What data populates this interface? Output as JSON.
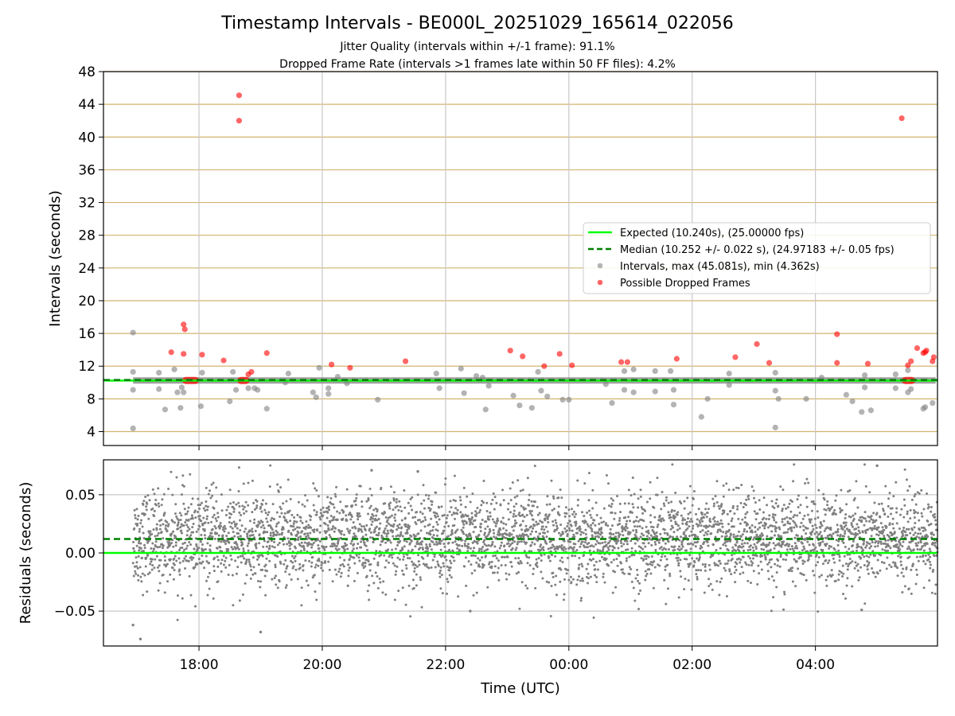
{
  "colors": {
    "expected": "#00ff00",
    "median": "#008000",
    "intervals": "#808080",
    "dropped": "#ff0000",
    "hgrid_top": "#d2b46e",
    "grid": "#c8c8c8"
  },
  "chart_data": [
    {
      "type": "scatter",
      "title": "Timestamp Intervals - BE000L_20251029_165614_022056",
      "subtitle_1": "Jitter Quality (intervals within +/-1 frame): 91.1%",
      "subtitle_2": "Dropped Frame Rate (intervals >1 frames late within 50 FF files): 4.2%",
      "xlabel": "",
      "ylabel": "Intervals (seconds)",
      "ylim": [
        2.3,
        48
      ],
      "yticks": [
        4,
        8,
        12,
        16,
        20,
        24,
        28,
        32,
        36,
        40,
        44,
        48
      ],
      "x_unit": "hours since 00:00 UTC on first day",
      "xlim": [
        16.45,
        29.98
      ],
      "xticks": [
        18,
        20,
        22,
        24,
        26,
        28
      ],
      "grid": true,
      "legend_position": "center-right",
      "legend": {
        "expected": "Expected (10.240s), (25.00000 fps)",
        "median": "Median (10.252 +/- 0.022 s), (24.97183 +/- 0.05 fps)",
        "intervals": "Intervals, max (45.081s), min (4.362s)",
        "dropped": "Possible Dropped Frames"
      },
      "series": [
        {
          "name": "Expected (10.240s), (25.00000 fps)",
          "kind": "hline",
          "y": 10.24
        },
        {
          "name": "Median (10.252 +/- 0.022 s), (24.97183 +/- 0.05 fps)",
          "kind": "hline",
          "y": 10.252
        },
        {
          "name": "Intervals, max (45.081s), min (4.362s)",
          "kind": "scatter",
          "band": {
            "x_start": 16.93,
            "x_end": 29.95,
            "y": 10.25
          },
          "points": [
            [
              16.93,
              16.1
            ],
            [
              16.93,
              11.3
            ],
            [
              16.93,
              9.1
            ],
            [
              16.93,
              4.4
            ],
            [
              17.35,
              11.2
            ],
            [
              17.35,
              9.2
            ],
            [
              17.45,
              6.7
            ],
            [
              17.6,
              11.6
            ],
            [
              17.65,
              8.8
            ],
            [
              17.7,
              6.9
            ],
            [
              17.72,
              9.4
            ],
            [
              17.75,
              8.8
            ],
            [
              18.05,
              11.2
            ],
            [
              18.03,
              7.1
            ],
            [
              18.5,
              7.7
            ],
            [
              18.55,
              11.3
            ],
            [
              18.6,
              9.1
            ],
            [
              18.8,
              9.3
            ],
            [
              18.9,
              9.3
            ],
            [
              18.95,
              9.1
            ],
            [
              19.1,
              6.8
            ],
            [
              19.45,
              11.1
            ],
            [
              19.4,
              10.0
            ],
            [
              19.85,
              8.8
            ],
            [
              19.9,
              8.2
            ],
            [
              19.95,
              11.8
            ],
            [
              20.1,
              9.3
            ],
            [
              20.1,
              8.6
            ],
            [
              20.25,
              10.7
            ],
            [
              20.4,
              9.9
            ],
            [
              20.9,
              7.9
            ],
            [
              21.85,
              11.1
            ],
            [
              21.9,
              9.3
            ],
            [
              22.25,
              11.7
            ],
            [
              22.3,
              8.7
            ],
            [
              22.5,
              10.8
            ],
            [
              22.6,
              10.6
            ],
            [
              22.65,
              6.7
            ],
            [
              22.7,
              9.6
            ],
            [
              23.1,
              8.4
            ],
            [
              23.2,
              7.2
            ],
            [
              23.4,
              6.9
            ],
            [
              23.5,
              11.3
            ],
            [
              23.55,
              9.0
            ],
            [
              23.65,
              8.3
            ],
            [
              23.9,
              7.9
            ],
            [
              24.0,
              7.9
            ],
            [
              24.6,
              9.8
            ],
            [
              24.7,
              7.5
            ],
            [
              24.9,
              11.4
            ],
            [
              24.9,
              9.1
            ],
            [
              25.05,
              11.6
            ],
            [
              25.05,
              8.8
            ],
            [
              25.4,
              11.4
            ],
            [
              25.4,
              8.9
            ],
            [
              25.65,
              11.4
            ],
            [
              25.7,
              7.3
            ],
            [
              25.7,
              9.1
            ],
            [
              26.15,
              5.8
            ],
            [
              26.25,
              8.0
            ],
            [
              26.6,
              11.1
            ],
            [
              26.6,
              9.7
            ],
            [
              27.35,
              11.2
            ],
            [
              27.35,
              9.0
            ],
            [
              27.35,
              4.5
            ],
            [
              27.4,
              8.0
            ],
            [
              27.85,
              8.0
            ],
            [
              28.1,
              10.6
            ],
            [
              28.5,
              8.5
            ],
            [
              28.6,
              7.7
            ],
            [
              28.8,
              10.9
            ],
            [
              28.8,
              9.4
            ],
            [
              28.75,
              6.4
            ],
            [
              28.9,
              6.6
            ],
            [
              29.3,
              11.0
            ],
            [
              29.3,
              9.3
            ],
            [
              29.5,
              11.5
            ],
            [
              29.5,
              8.8
            ],
            [
              29.55,
              9.2
            ],
            [
              29.75,
              6.8
            ],
            [
              29.78,
              7.0
            ],
            [
              29.9,
              7.5
            ]
          ]
        },
        {
          "name": "Possible Dropped Frames",
          "kind": "scatter",
          "points": [
            [
              17.75,
              17.1
            ],
            [
              17.77,
              16.5
            ],
            [
              17.75,
              13.5
            ],
            [
              17.55,
              13.7
            ],
            [
              18.05,
              13.4
            ],
            [
              18.4,
              12.7
            ],
            [
              18.65,
              45.1
            ],
            [
              18.65,
              42.0
            ],
            [
              18.85,
              11.3
            ],
            [
              18.8,
              11.0
            ],
            [
              19.1,
              13.6
            ],
            [
              20.15,
              12.2
            ],
            [
              20.45,
              11.8
            ],
            [
              21.35,
              12.6
            ],
            [
              23.05,
              13.9
            ],
            [
              23.25,
              13.2
            ],
            [
              23.6,
              12.0
            ],
            [
              23.85,
              13.5
            ],
            [
              24.05,
              12.1
            ],
            [
              24.85,
              12.5
            ],
            [
              24.95,
              12.5
            ],
            [
              25.75,
              12.9
            ],
            [
              26.7,
              13.1
            ],
            [
              27.05,
              14.7
            ],
            [
              27.25,
              12.4
            ],
            [
              28.35,
              15.9
            ],
            [
              28.35,
              12.4
            ],
            [
              28.85,
              12.3
            ],
            [
              29.5,
              12.1
            ],
            [
              29.55,
              12.6
            ],
            [
              29.65,
              14.2
            ],
            [
              29.8,
              13.9
            ],
            [
              29.9,
              12.6
            ],
            [
              29.4,
              42.3
            ],
            [
              29.75,
              13.6
            ],
            [
              29.78,
              13.7
            ],
            [
              29.92,
              13.1
            ]
          ],
          "clusters": [
            {
              "x_start": 17.73,
              "x_end": 18.0,
              "y": 10.25
            },
            {
              "x_start": 18.62,
              "x_end": 18.82,
              "y": 10.25
            },
            {
              "x_start": 29.4,
              "x_end": 29.62,
              "y": 10.25
            }
          ]
        }
      ]
    },
    {
      "type": "scatter",
      "title": "",
      "xlabel": "Time (UTC)",
      "ylabel": "Residuals (seconds)",
      "ylim": [
        -0.08,
        0.08
      ],
      "yticks": [
        -0.05,
        0.0,
        0.05
      ],
      "ytick_labels": [
        "−0.05",
        "0.00",
        "0.05"
      ],
      "xlim": [
        16.45,
        29.98
      ],
      "xticks": [
        18,
        20,
        22,
        24,
        26,
        28
      ],
      "xtick_labels": [
        "18:00",
        "20:00",
        "22:00",
        "00:00",
        "02:00",
        "04:00"
      ],
      "grid": true,
      "series": [
        {
          "name": "",
          "kind": "hline",
          "y": 0.0
        },
        {
          "name": "",
          "kind": "hline",
          "y": 0.012
        },
        {
          "name": "",
          "kind": "scatter",
          "distribution": {
            "x_start": 16.93,
            "x_end": 29.98,
            "count": 4200,
            "mean": 0.012,
            "std": 0.02
          },
          "outliers": [
            [
              16.93,
              -0.062
            ],
            [
              17.05,
              -0.074
            ],
            [
              19.0,
              -0.068
            ],
            [
              20.8,
              0.071
            ],
            [
              21.55,
              0.07
            ],
            [
              29.0,
              0.075
            ],
            [
              28.75,
              -0.049
            ],
            [
              22.4,
              -0.05
            ]
          ]
        }
      ]
    }
  ]
}
